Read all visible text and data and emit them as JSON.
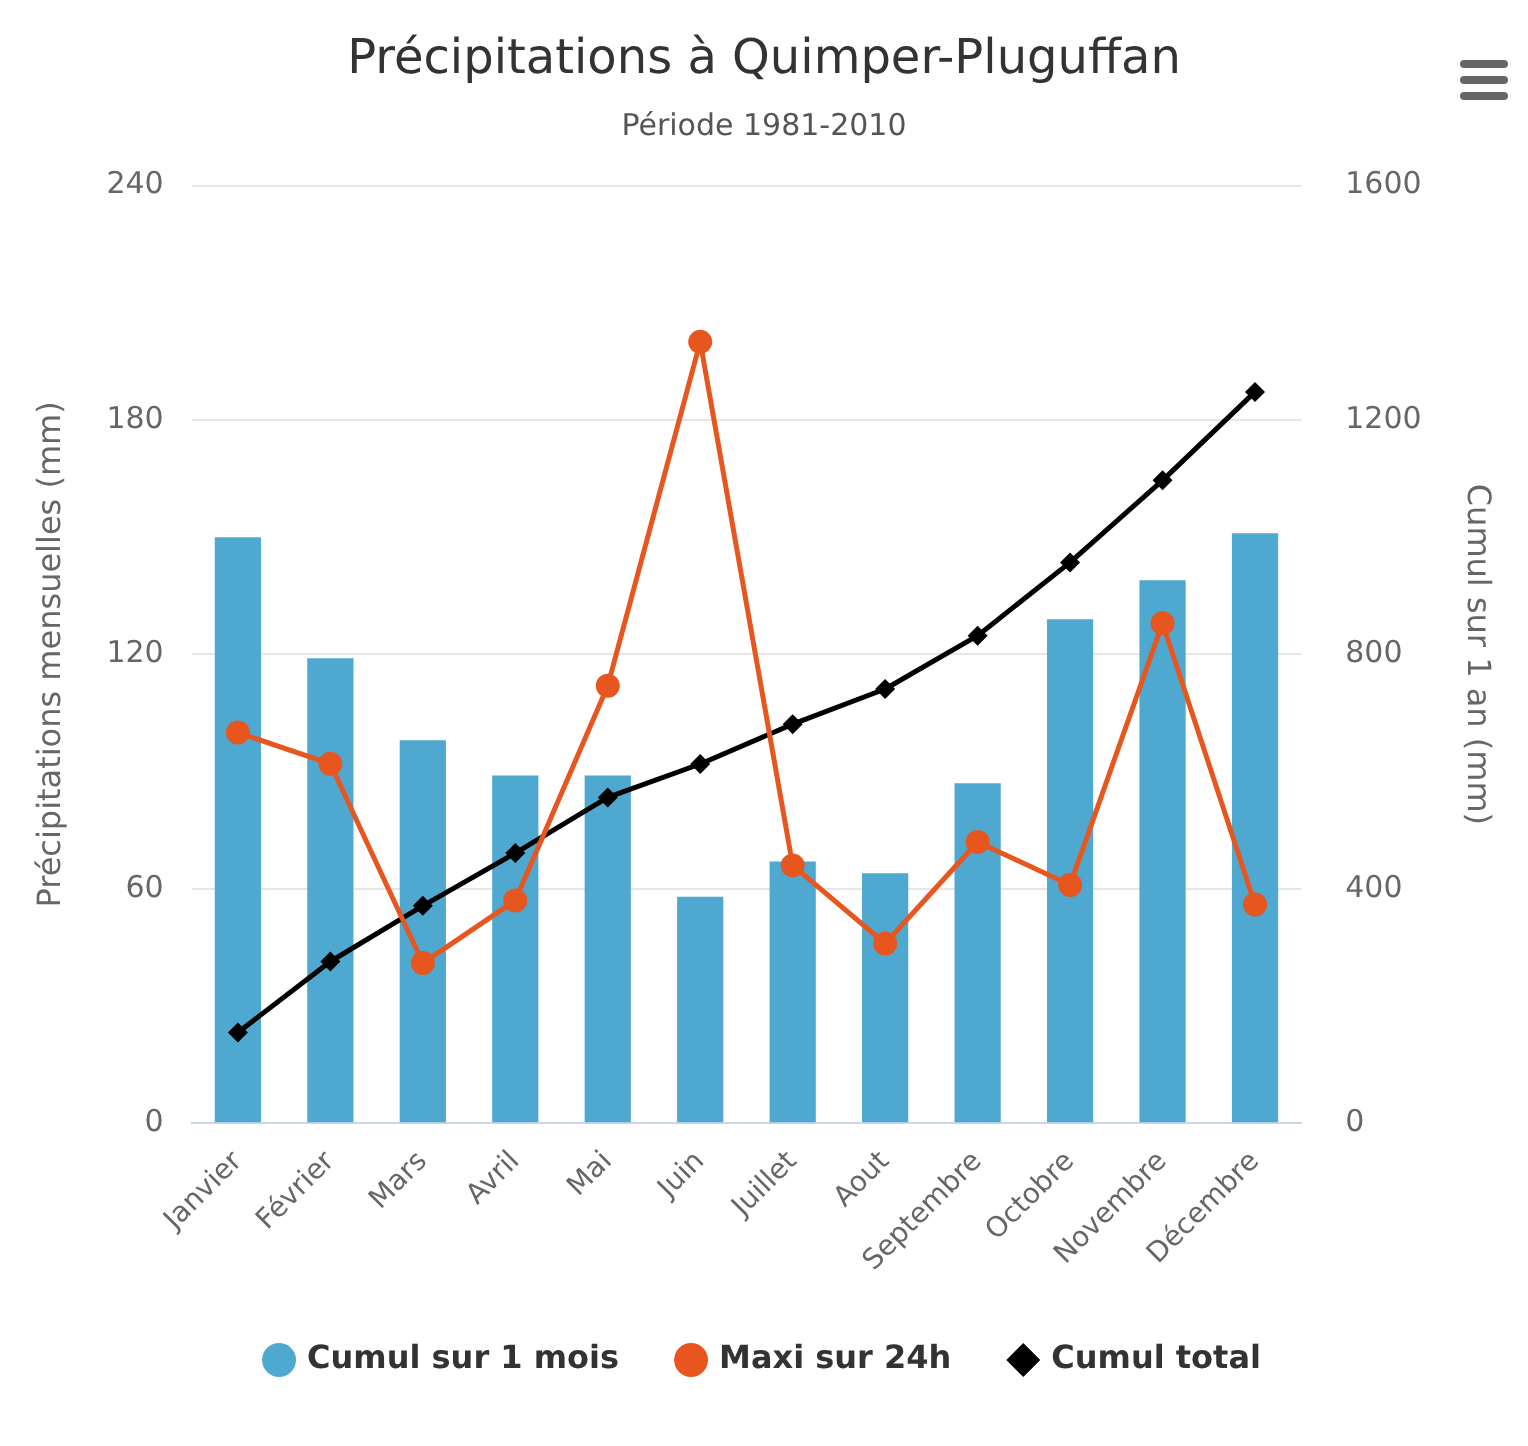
{
  "chart_data": {
    "type": "bar",
    "title": "Précipitations à Quimper-Pluguffan",
    "subtitle": "Période 1981-2010",
    "ylabel": "Précipitations mensuelles (mm)",
    "y2label": "Cumul sur 1 an (mm)",
    "categories": [
      "Janvier",
      "Février",
      "Mars",
      "Avril",
      "Mai",
      "Juin",
      "Juillet",
      "Aout",
      "Septembre",
      "Octobre",
      "Novembre",
      "Décembre"
    ],
    "series": [
      {
        "name": "Cumul sur 1 mois",
        "color": "#4fa8d0",
        "values": [
          150,
          119,
          98,
          89,
          89,
          58,
          67,
          64,
          87,
          129,
          139,
          151
        ]
      },
      {
        "name": "Maxi sur 24h",
        "type": "line",
        "color": "#e8561f",
        "marker": "circle",
        "values": [
          100,
          92,
          41,
          57,
          112,
          200,
          66,
          46,
          72,
          61,
          128,
          56
        ]
      },
      {
        "name": "Cumul total",
        "type": "line",
        "axis": "y2",
        "color": "#000000",
        "marker": "diamond",
        "values": [
          155,
          276,
          371,
          461,
          556,
          613,
          681,
          741,
          832,
          957,
          1097,
          1248
        ]
      }
    ],
    "ylim": [
      0,
      240
    ],
    "yticks": [
      0,
      60,
      120,
      180,
      240
    ],
    "y2lim": [
      0,
      1600
    ],
    "y2ticks": [
      0,
      400,
      800,
      1200,
      1600
    ],
    "grid": "y",
    "legend": "bottom"
  }
}
